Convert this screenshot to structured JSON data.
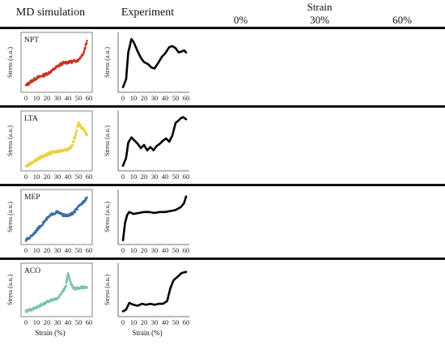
{
  "headers": {
    "md": "MD simulation",
    "exp": "Experiment",
    "strain": "Strain",
    "s0": "0%",
    "s30": "30%",
    "s60": "60%"
  },
  "axis": {
    "stress": "Stress (a.u.)",
    "strain": "Strain (%)",
    "ticks": [
      "0",
      "10",
      "20",
      "30",
      "40",
      "50",
      "60"
    ]
  },
  "chart_data": [
    {
      "type": "scatter",
      "label": "NPT",
      "color": "#cc3322",
      "panel": "md",
      "x": [
        0,
        5,
        10,
        15,
        20,
        25,
        30,
        35,
        40,
        45,
        50,
        55,
        58
      ],
      "values": [
        0.08,
        0.16,
        0.22,
        0.26,
        0.3,
        0.36,
        0.44,
        0.5,
        0.52,
        0.53,
        0.56,
        0.7,
        0.92
      ],
      "xlabel": "",
      "ylabel": "Stress (a.u.)",
      "xlim": [
        0,
        60
      ]
    },
    {
      "type": "line",
      "label": "NPT",
      "color": "#000000",
      "panel": "exp",
      "x": [
        0,
        3,
        5,
        8,
        10,
        14,
        17,
        20,
        24,
        27,
        30,
        34,
        37,
        40,
        44,
        47,
        50,
        53,
        56,
        58,
        60
      ],
      "values": [
        0.05,
        0.2,
        0.7,
        0.95,
        0.9,
        0.72,
        0.6,
        0.52,
        0.48,
        0.42,
        0.4,
        0.52,
        0.62,
        0.68,
        0.8,
        0.82,
        0.78,
        0.7,
        0.72,
        0.74,
        0.7
      ],
      "xlabel": "",
      "ylabel": "Stress (a.u.)",
      "xlim": [
        0,
        60
      ]
    },
    {
      "type": "scatter",
      "label": "LTA",
      "color": "#e8d040",
      "panel": "md",
      "x": [
        0,
        5,
        10,
        15,
        20,
        25,
        30,
        35,
        40,
        44,
        47,
        50,
        52,
        55,
        58
      ],
      "values": [
        0.04,
        0.1,
        0.16,
        0.22,
        0.26,
        0.3,
        0.32,
        0.34,
        0.36,
        0.42,
        0.62,
        0.85,
        0.78,
        0.74,
        0.62
      ],
      "xlabel": "",
      "ylabel": "Stress (a.u.)",
      "xlim": [
        0,
        60
      ]
    },
    {
      "type": "line",
      "label": "LTA",
      "color": "#000000",
      "panel": "exp",
      "x": [
        0,
        3,
        5,
        8,
        11,
        14,
        17,
        20,
        23,
        26,
        29,
        32,
        35,
        38,
        41,
        44,
        47,
        50,
        53,
        55,
        57,
        60
      ],
      "values": [
        0.05,
        0.2,
        0.48,
        0.58,
        0.52,
        0.46,
        0.38,
        0.44,
        0.34,
        0.4,
        0.34,
        0.42,
        0.46,
        0.52,
        0.56,
        0.5,
        0.62,
        0.85,
        0.9,
        0.94,
        0.96,
        0.92
      ],
      "xlabel": "",
      "ylabel": "Stress (a.u.)",
      "xlim": [
        0,
        60
      ]
    },
    {
      "type": "scatter",
      "label": "MEP",
      "color": "#3a6ea5",
      "panel": "md",
      "x": [
        0,
        5,
        10,
        15,
        20,
        25,
        30,
        35,
        40,
        45,
        50,
        55,
        58
      ],
      "values": [
        0.04,
        0.12,
        0.24,
        0.36,
        0.48,
        0.58,
        0.62,
        0.56,
        0.54,
        0.6,
        0.72,
        0.84,
        0.92
      ],
      "xlabel": "",
      "ylabel": "Stress (a.u.)",
      "xlim": [
        0,
        60
      ]
    },
    {
      "type": "line",
      "label": "MEP",
      "color": "#000000",
      "panel": "exp",
      "x": [
        0,
        2,
        4,
        6,
        10,
        15,
        20,
        25,
        30,
        35,
        40,
        45,
        50,
        55,
        58,
        60
      ],
      "values": [
        0.04,
        0.4,
        0.56,
        0.62,
        0.58,
        0.6,
        0.62,
        0.62,
        0.6,
        0.62,
        0.62,
        0.64,
        0.66,
        0.72,
        0.8,
        0.94
      ],
      "xlabel": "",
      "ylabel": "Stress (a.u.)",
      "xlim": [
        0,
        60
      ]
    },
    {
      "type": "scatter",
      "label": "ACO",
      "color": "#7cc4a4",
      "panel": "md",
      "x": [
        0,
        5,
        10,
        15,
        20,
        25,
        30,
        35,
        38,
        40,
        42,
        45,
        48,
        52,
        55,
        58
      ],
      "values": [
        0.06,
        0.1,
        0.14,
        0.2,
        0.26,
        0.3,
        0.34,
        0.48,
        0.6,
        0.86,
        0.7,
        0.56,
        0.54,
        0.56,
        0.58,
        0.56
      ],
      "xlabel": "Strain (%)",
      "ylabel": "Stress (a.u.)",
      "xlim": [
        0,
        60
      ]
    },
    {
      "type": "line",
      "label": "ACO",
      "color": "#000000",
      "panel": "exp",
      "x": [
        0,
        3,
        6,
        10,
        14,
        18,
        22,
        26,
        30,
        34,
        38,
        42,
        45,
        48,
        52,
        56,
        60
      ],
      "values": [
        0.06,
        0.1,
        0.24,
        0.2,
        0.18,
        0.22,
        0.2,
        0.22,
        0.2,
        0.22,
        0.22,
        0.28,
        0.55,
        0.72,
        0.8,
        0.88,
        0.9
      ],
      "xlabel": "Strain (%)",
      "ylabel": "Stress (a.u.)",
      "xlim": [
        0,
        60
      ]
    }
  ]
}
